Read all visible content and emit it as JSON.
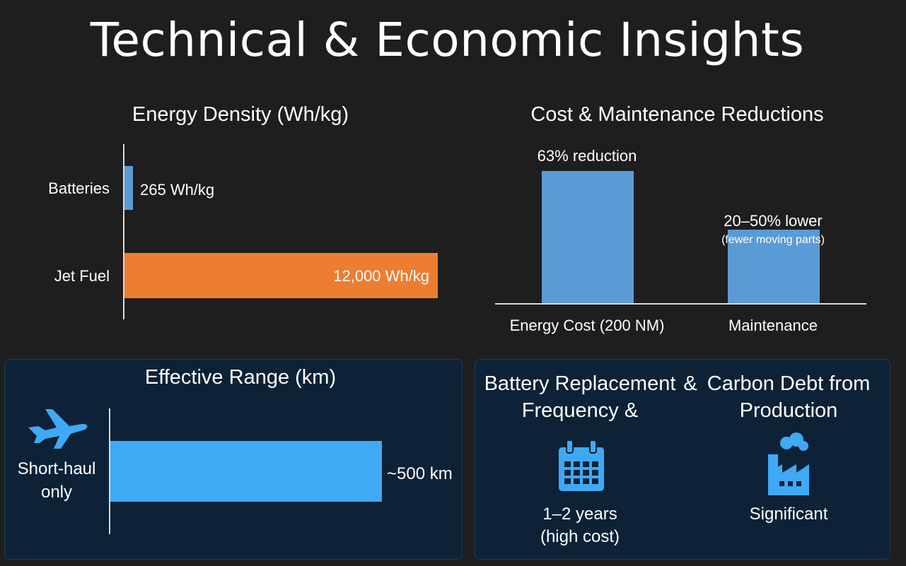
{
  "page": {
    "title": "Technical & Economic Insights"
  },
  "colors": {
    "battery": "#5b9bd5",
    "jet_fuel": "#ed7d31",
    "range": "#3fa9f5",
    "cost": "#5b9bd5",
    "navy": "#0d2237"
  },
  "chart_data": [
    {
      "type": "bar",
      "orientation": "horizontal",
      "title": "Energy Density (Wh/kg)",
      "categories": [
        "Batteries",
        "Jet Fuel"
      ],
      "values": [
        265,
        12000
      ],
      "data_labels": [
        "265 Wh/kg",
        "12,000 Wh/kg"
      ],
      "xlim": [
        0,
        12000
      ]
    },
    {
      "type": "bar",
      "title": "Cost & Maintenance Reductions",
      "categories": [
        "Energy Cost (200 NM)",
        "Maintenance"
      ],
      "values": [
        63,
        35
      ],
      "data_labels": [
        "63% reduction",
        "20–50% lower"
      ],
      "sub_labels": [
        "",
        "(fewer moving parts)"
      ],
      "ylim": [
        0,
        63
      ]
    },
    {
      "type": "bar",
      "orientation": "horizontal",
      "title": "Effective Range (km)",
      "categories": [
        "Short-haul only"
      ],
      "category_lines": [
        "Short-haul",
        "only"
      ],
      "values": [
        500
      ],
      "data_labels": [
        "~500 km"
      ],
      "xlim": [
        0,
        500
      ]
    }
  ],
  "battery_panel": {
    "heading_left": "Battery Replacement",
    "heading_left_2": "Frequency &",
    "heading_amp": "&",
    "heading_right": "Carbon Debt from",
    "heading_right_2": "Production",
    "left_icon": "calendar-icon",
    "left_value_1": "1–2 years",
    "left_value_2": "(high cost)",
    "right_icon": "factory-icon",
    "right_value": "Significant"
  },
  "range_icon": "airplane-icon"
}
